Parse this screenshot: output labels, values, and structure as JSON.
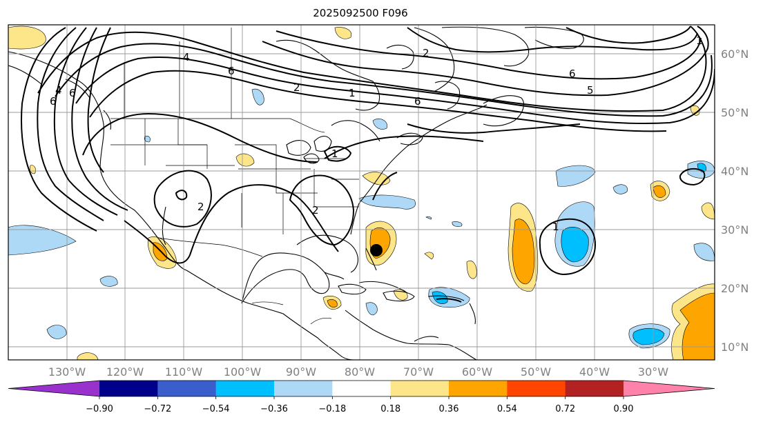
{
  "title": "2025092500 F096",
  "map": {
    "lon_ticks": [
      "130°W",
      "120°W",
      "110°W",
      "100°W",
      "90°W",
      "80°W",
      "70°W",
      "60°W",
      "50°W",
      "40°W",
      "30°W"
    ],
    "lat_ticks": [
      "60°N",
      "50°N",
      "40°N",
      "30°N",
      "20°N",
      "10°N"
    ],
    "contour_labels": [
      "6",
      "4",
      "6",
      "6",
      "2",
      "1",
      "2",
      "6",
      "5",
      "6",
      "4",
      "2",
      "1",
      "2",
      "1",
      "1"
    ],
    "storm_marker": "storm-center"
  },
  "colorbar": {
    "colors": [
      "#9932cc",
      "#00008b",
      "#3a5fcd",
      "#00bfff",
      "#add8f6",
      "#ffffff",
      "#fde68a",
      "#ffa500",
      "#ff4500",
      "#b22222",
      "#ff82ab"
    ],
    "labels": [
      "−0.90",
      "−0.72",
      "−0.54",
      "−0.36",
      "−0.18",
      "0.18",
      "0.36",
      "0.54",
      "0.72",
      "0.90"
    ]
  }
}
